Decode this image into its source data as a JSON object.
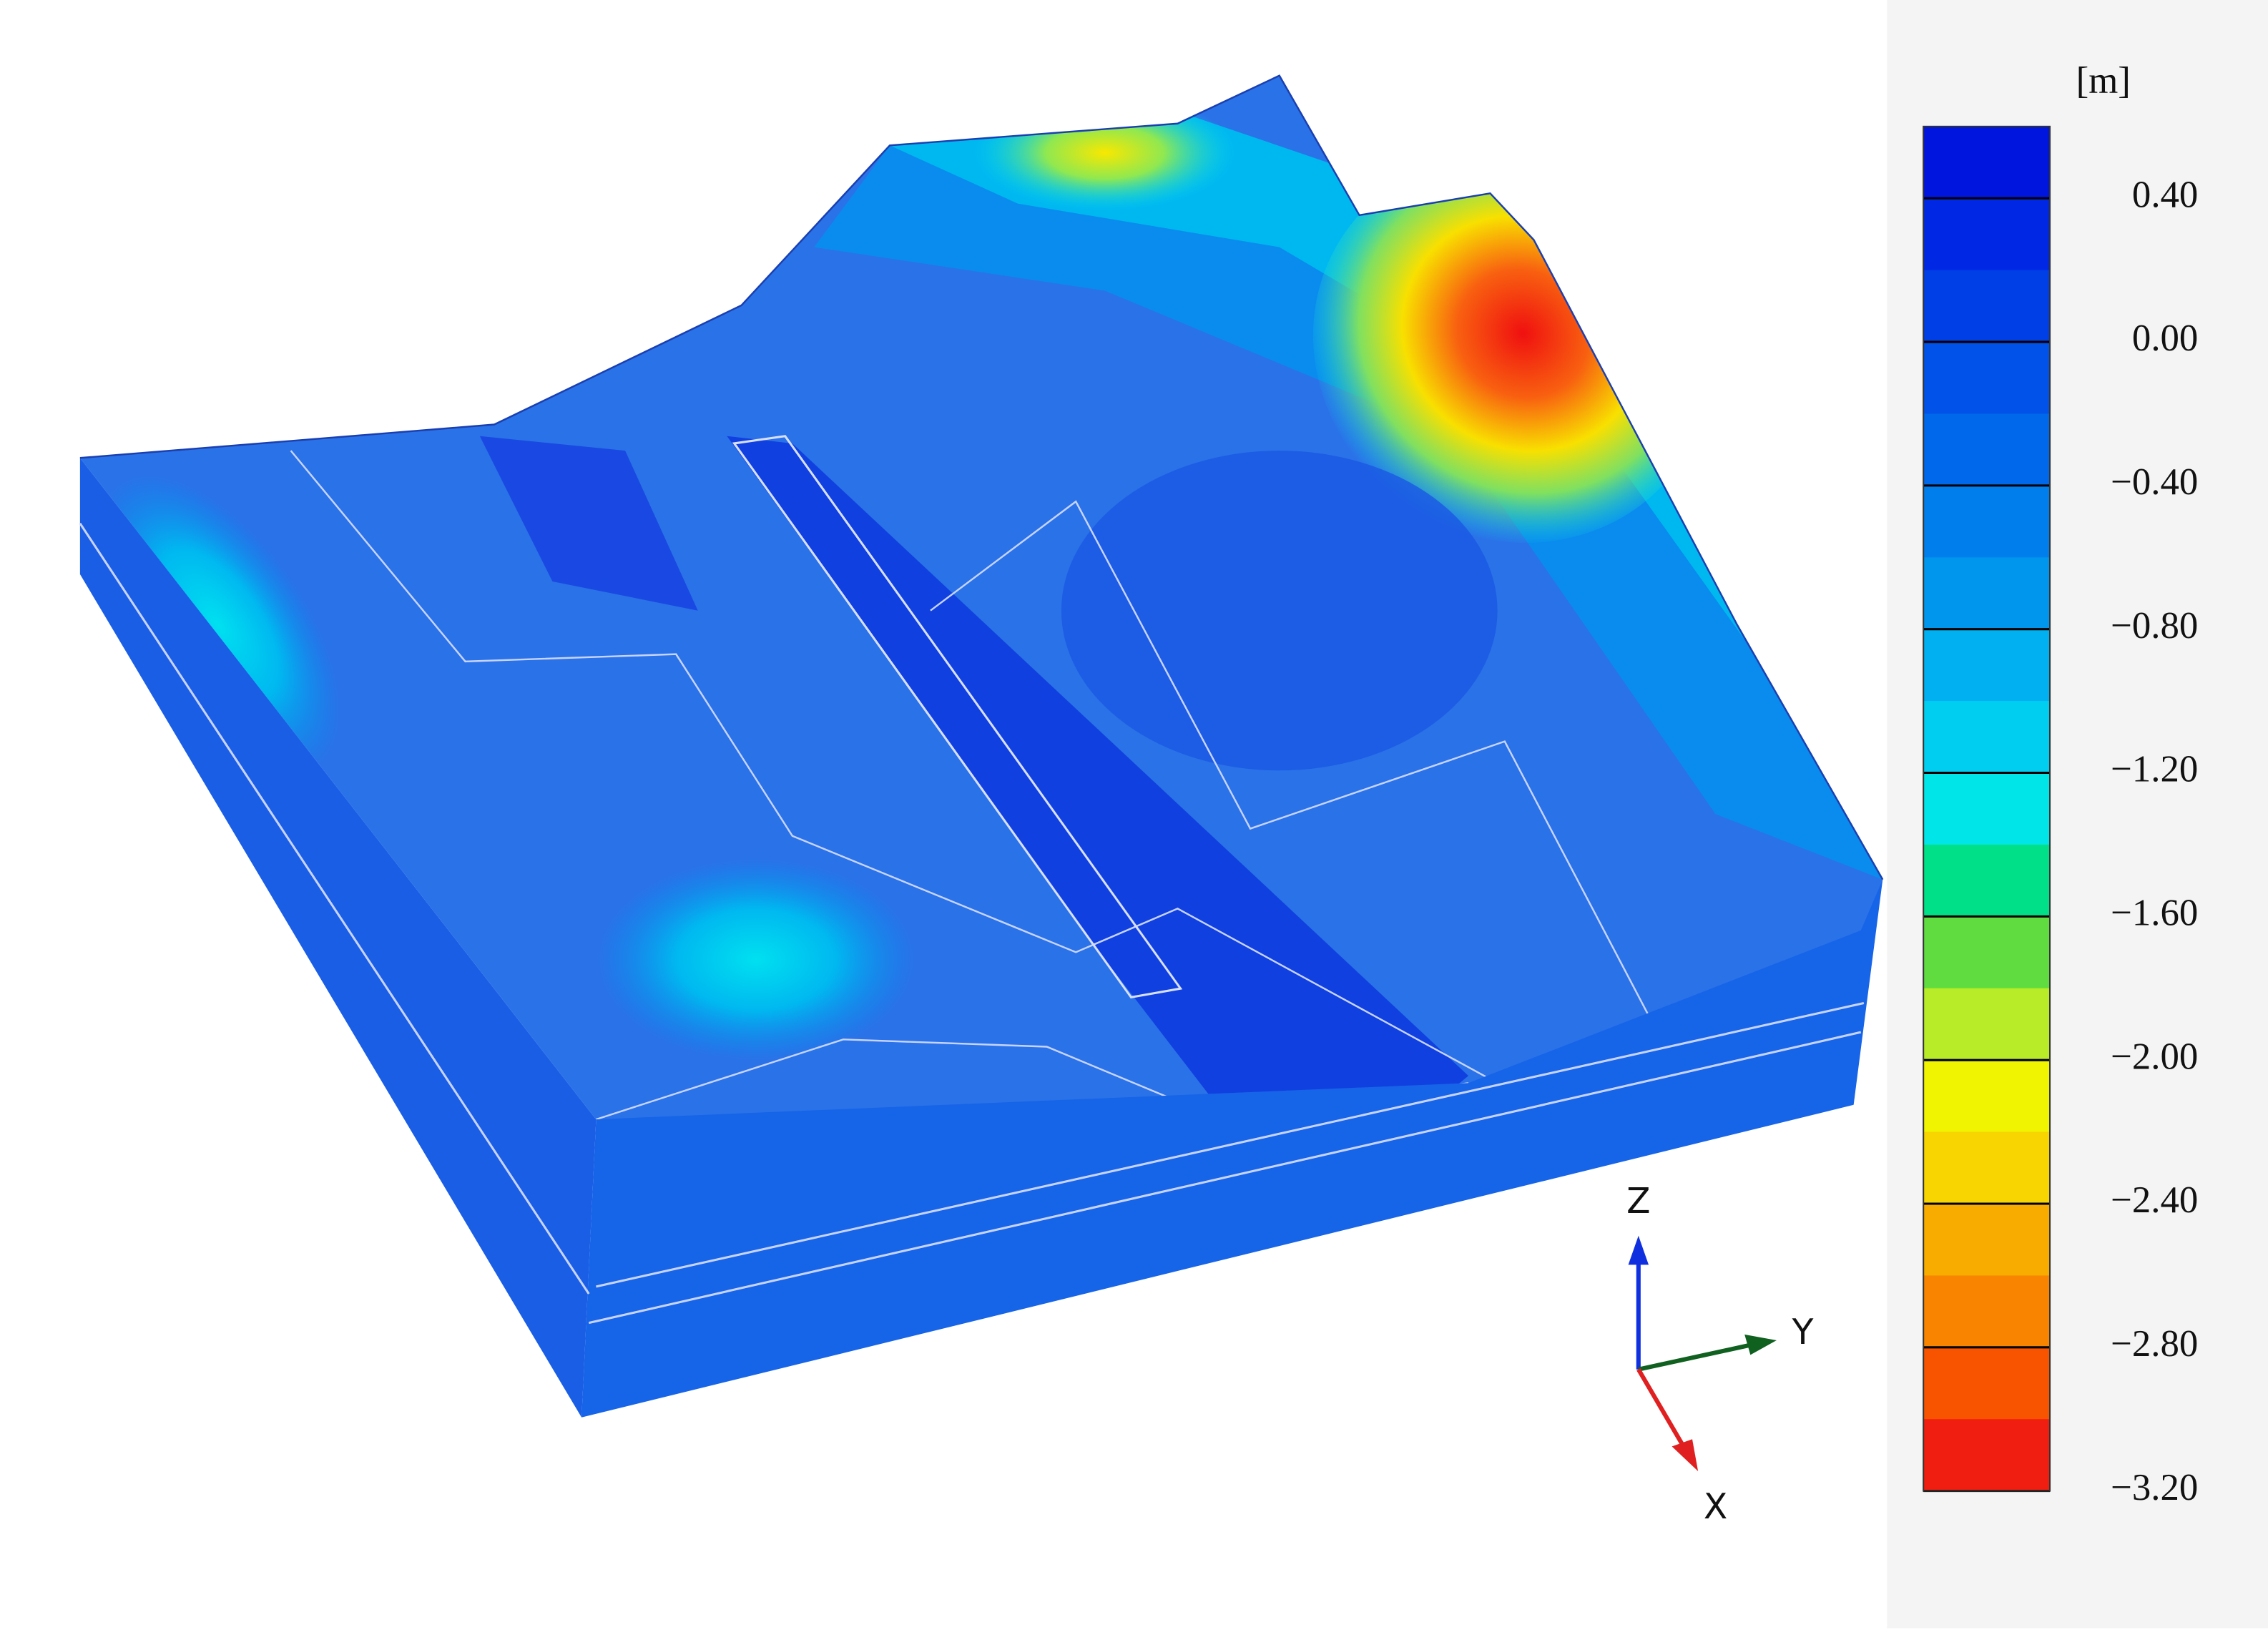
{
  "colorbar": {
    "unit": "[m]",
    "ticks": [
      "0.40",
      "0.00",
      "−0.40",
      "−0.80",
      "−1.20",
      "−1.60",
      "−2.00",
      "−2.40",
      "−2.80",
      "−3.20"
    ]
  },
  "axes": {
    "z": "Z",
    "y": "Y",
    "x": "X"
  }
}
